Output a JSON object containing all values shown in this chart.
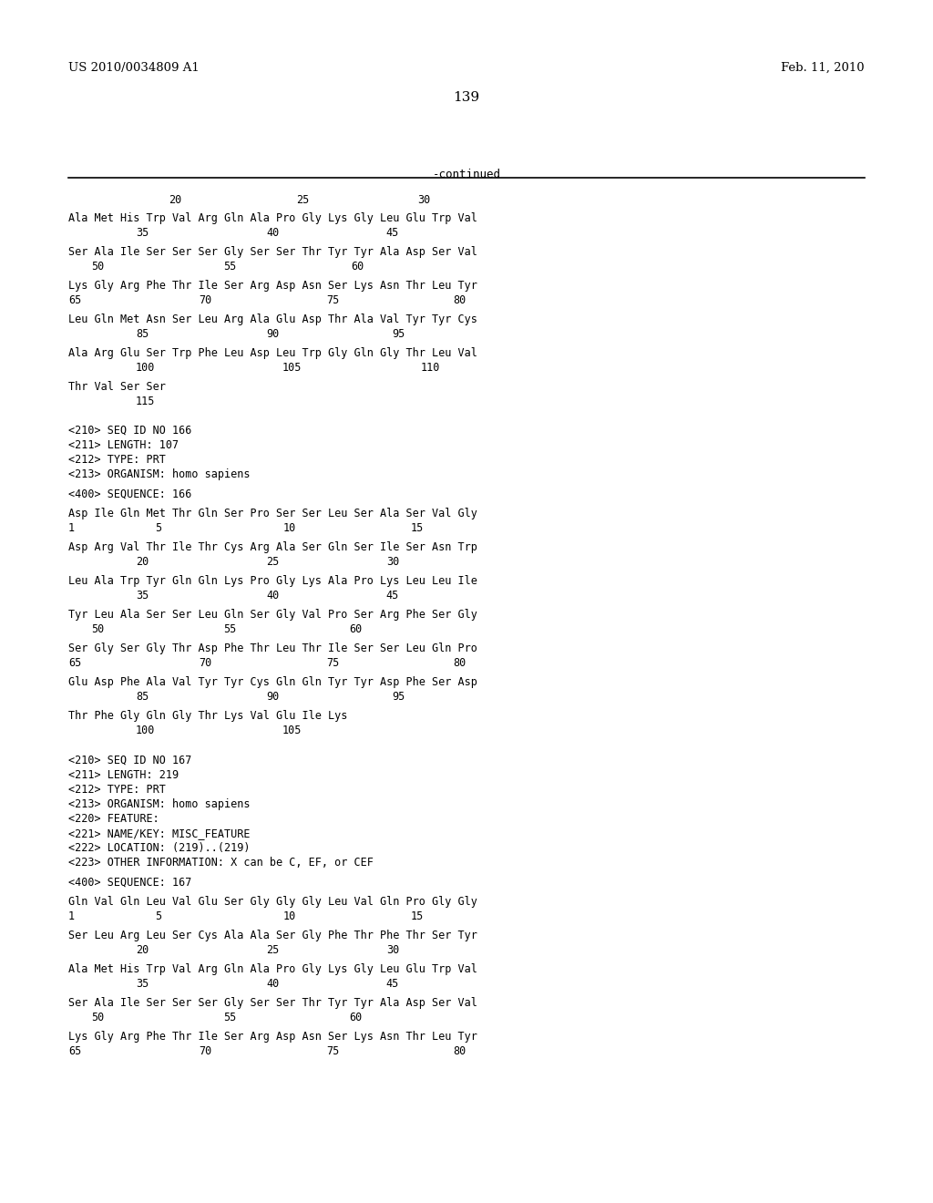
{
  "header_left": "US 2010/0034809 A1",
  "header_right": "Feb. 11, 2010",
  "page_number": "139",
  "background_color": "#ffffff",
  "text_color": "#000000"
}
